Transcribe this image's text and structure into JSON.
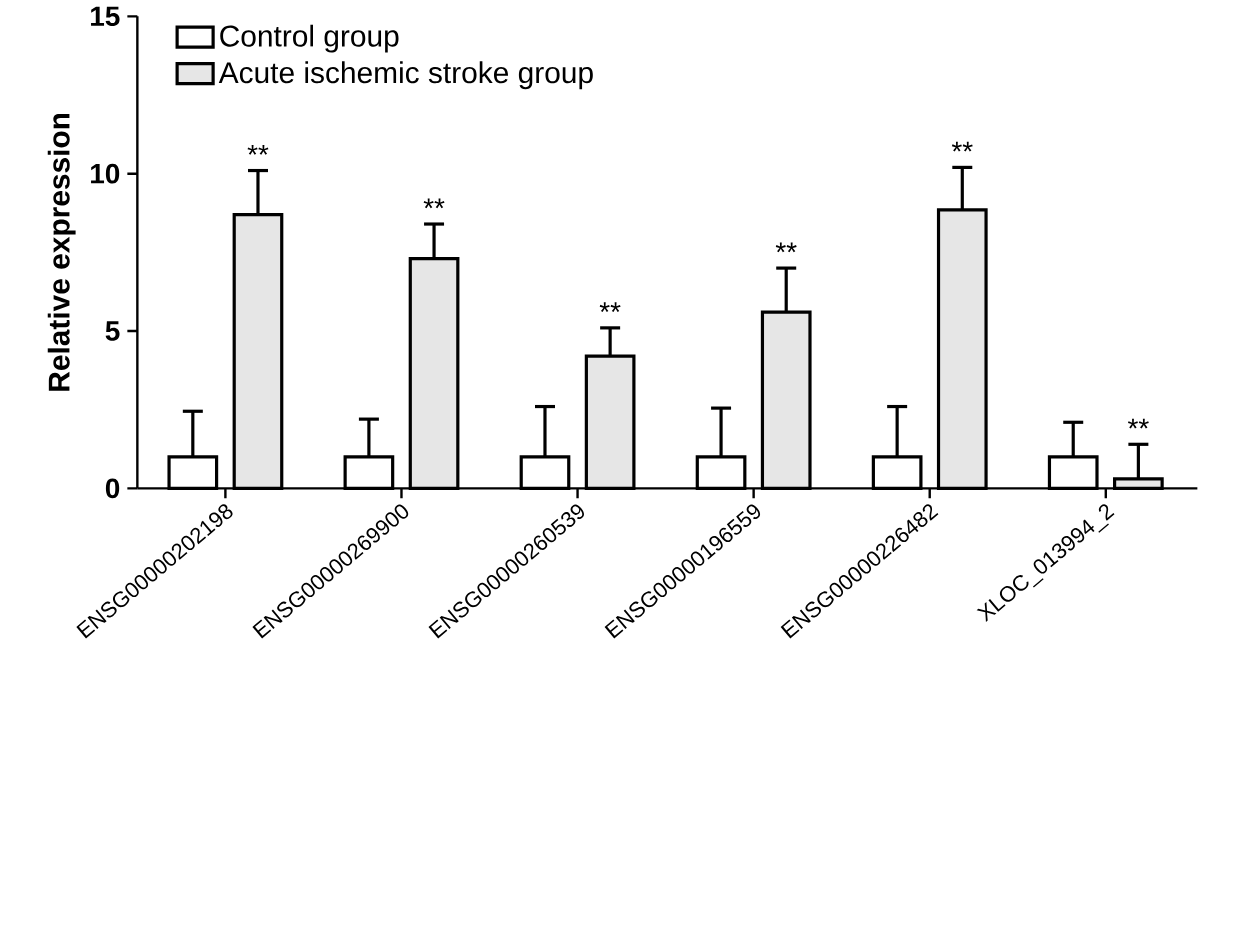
{
  "chart_data": {
    "type": "bar",
    "ylabel": "Relative expression",
    "categories": [
      "ENSG00000202198",
      "ENSG00000269900",
      "ENSG00000260539",
      "ENSG00000196559",
      "ENSG00000226482",
      "XLOC_013994_2"
    ],
    "series": [
      {
        "name": "Control group",
        "color": "#ffffff",
        "values": [
          1.0,
          1.0,
          1.0,
          1.0,
          1.0,
          1.0
        ],
        "errors": [
          1.45,
          1.2,
          1.6,
          1.55,
          1.6,
          1.1
        ]
      },
      {
        "name": "Acute ischemic stroke group",
        "color": "#e6e6e6",
        "values": [
          8.7,
          7.3,
          4.2,
          5.6,
          8.85,
          0.3
        ],
        "errors": [
          1.4,
          1.1,
          0.9,
          1.4,
          1.35,
          1.1
        ]
      }
    ],
    "ylim": [
      0,
      15
    ],
    "yticks": [
      0,
      5,
      10,
      15
    ],
    "legend": "top left",
    "grid": false,
    "annotations": [
      "**",
      "**",
      "**",
      "**",
      "**",
      "**"
    ]
  }
}
